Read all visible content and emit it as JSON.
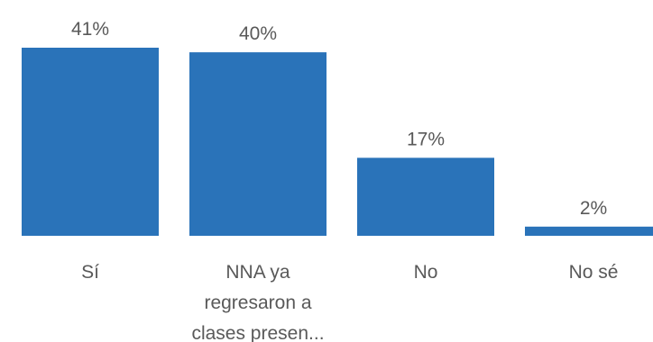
{
  "chart_data": {
    "type": "bar",
    "title": "",
    "xlabel": "",
    "ylabel": "",
    "ylim": [
      0,
      41
    ],
    "grid": false,
    "legend": "none",
    "bar_color": "#2a73b9",
    "label_color": "#595959",
    "categories": [
      [
        "Sí"
      ],
      [
        "NNA ya",
        "regresaron a",
        "clases presen..."
      ],
      [
        "No"
      ],
      [
        "No sé"
      ]
    ],
    "values": [
      41,
      40,
      17,
      2
    ],
    "value_labels": [
      "41%",
      "40%",
      "17%",
      "2%"
    ]
  }
}
